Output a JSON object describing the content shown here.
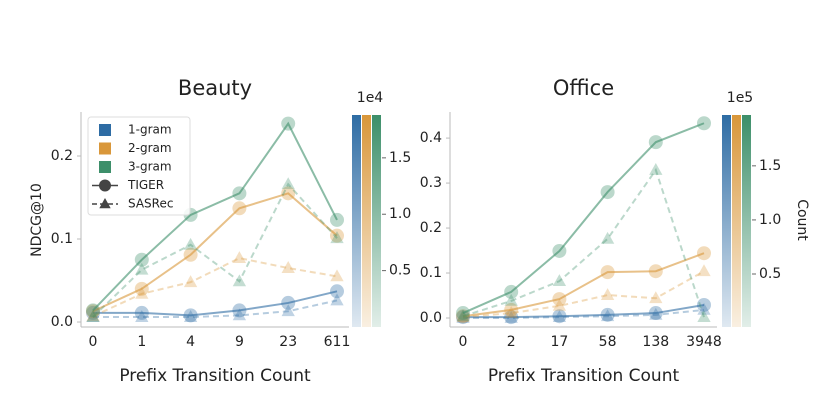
{
  "chart_data": [
    {
      "type": "line",
      "title": "Beauty",
      "x_label": "Prefix Transition Count",
      "y_label": "NDCG@10",
      "categories": [
        "0",
        "1",
        "4",
        "9",
        "23",
        "611"
      ],
      "ylim": [
        -0.006,
        0.253
      ],
      "yticks": [
        {
          "value": 0,
          "label": "0.0"
        },
        {
          "value": 0.1,
          "label": "0.1"
        },
        {
          "value": 0.2,
          "label": "0.2"
        }
      ],
      "series": [
        {
          "color": "#2e6ca4",
          "marker": "circle",
          "dash": false,
          "values": [
            0.011,
            0.011,
            0.008,
            0.014,
            0.023,
            0.037
          ]
        },
        {
          "color": "#2e6ca4",
          "marker": "triangle",
          "dash": true,
          "values": [
            0.006,
            0.006,
            0.006,
            0.008,
            0.013,
            0.026
          ]
        },
        {
          "color": "#d9973a",
          "marker": "circle",
          "dash": false,
          "values": [
            0.013,
            0.04,
            0.081,
            0.137,
            0.155,
            0.104
          ]
        },
        {
          "color": "#d9973a",
          "marker": "triangle",
          "dash": true,
          "values": [
            0.007,
            0.034,
            0.048,
            0.077,
            0.065,
            0.055
          ]
        },
        {
          "color": "#3d8f6a",
          "marker": "circle",
          "dash": false,
          "values": [
            0.014,
            0.075,
            0.129,
            0.155,
            0.239,
            0.123
          ]
        },
        {
          "color": "#3d8f6a",
          "marker": "triangle",
          "dash": true,
          "values": [
            0.006,
            0.063,
            0.093,
            0.049,
            0.166,
            0.101
          ]
        }
      ],
      "legend": {
        "loc": "upper left",
        "entries": [
          {
            "name": "1-gram",
            "color": "#2e6ca4"
          },
          {
            "name": "2-gram",
            "color": "#d9973a"
          },
          {
            "name": "3-gram",
            "color": "#3d8f6a"
          },
          {
            "name": "TIGER",
            "marker": "circle",
            "dash": false
          },
          {
            "name": "SASRec",
            "marker": "triangle",
            "dash": true
          }
        ]
      },
      "colorbar": {
        "offset_label": "1e4",
        "lim": [
          0,
          1.88
        ],
        "ticks": [
          0.5,
          {
            "value": 1,
            "label": "1.0"
          },
          1.5
        ],
        "colors": [
          "#2e6ca4",
          "#d9973a",
          "#3d8f6a"
        ]
      }
    },
    {
      "type": "line",
      "title": "Office",
      "x_label": "Prefix Transition Count",
      "categories": [
        "0",
        "2",
        "17",
        "58",
        "138",
        "3948"
      ],
      "ylim": [
        -0.02,
        0.458
      ],
      "yticks": [
        {
          "value": 0,
          "label": "0.0"
        },
        0.1,
        0.2,
        0.3,
        0.4
      ],
      "series": [
        {
          "color": "#2e6ca4",
          "marker": "circle",
          "dash": false,
          "values": [
            0.002,
            0.002,
            0.004,
            0.007,
            0.011,
            0.029
          ]
        },
        {
          "color": "#2e6ca4",
          "marker": "triangle",
          "dash": true,
          "values": [
            0.0,
            0.0,
            0.002,
            0.004,
            0.007,
            0.018
          ]
        },
        {
          "color": "#d9973a",
          "marker": "circle",
          "dash": false,
          "values": [
            0.004,
            0.018,
            0.042,
            0.102,
            0.104,
            0.144
          ]
        },
        {
          "color": "#d9973a",
          "marker": "triangle",
          "dash": true,
          "values": [
            0.002,
            0.011,
            0.027,
            0.051,
            0.044,
            0.104
          ]
        },
        {
          "color": "#3d8f6a",
          "marker": "circle",
          "dash": false,
          "values": [
            0.011,
            0.058,
            0.149,
            0.28,
            0.391,
            0.433
          ]
        },
        {
          "color": "#3d8f6a",
          "marker": "triangle",
          "dash": true,
          "values": [
            0.004,
            0.038,
            0.082,
            0.176,
            0.329,
            0.002
          ]
        }
      ],
      "colorbar": {
        "offset_label": "1e5",
        "label": "Count",
        "lim": [
          0.01,
          1.97
        ],
        "ticks": [
          0.5,
          {
            "value": 1,
            "label": "1.0"
          },
          1.5
        ],
        "colors": [
          "#2e6ca4",
          "#d9973a",
          "#3d8f6a"
        ]
      }
    }
  ]
}
